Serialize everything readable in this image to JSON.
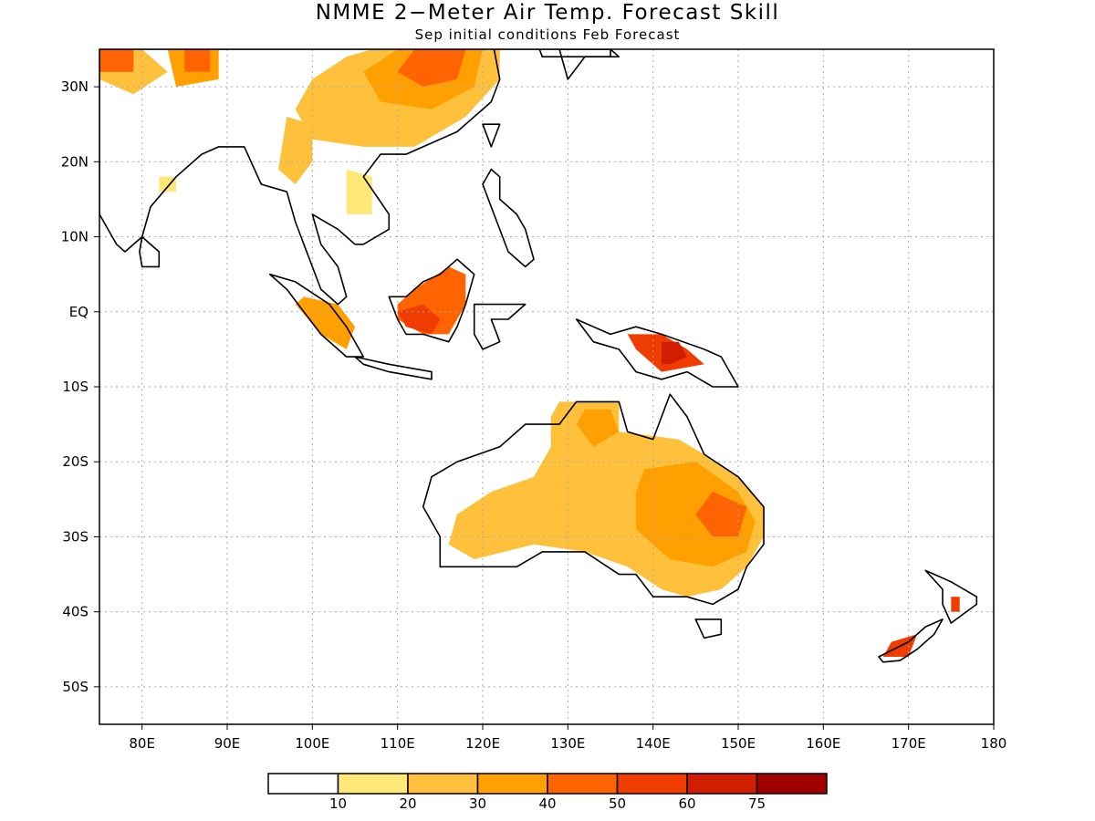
{
  "title": "NMME 2−Meter Air Temp. Forecast Skill",
  "subtitle": "Sep initial conditions  Feb Forecast",
  "map": {
    "lon_range": [
      75,
      180
    ],
    "lat_range": [
      -55,
      35
    ],
    "lat_ticks": [
      {
        "lat": 30,
        "label": "30N"
      },
      {
        "lat": 20,
        "label": "20N"
      },
      {
        "lat": 10,
        "label": "10N"
      },
      {
        "lat": 0,
        "label": "EQ"
      },
      {
        "lat": -10,
        "label": "10S"
      },
      {
        "lat": -20,
        "label": "20S"
      },
      {
        "lat": -30,
        "label": "30S"
      },
      {
        "lat": -40,
        "label": "40S"
      },
      {
        "lat": -50,
        "label": "50S"
      }
    ],
    "lon_ticks": [
      {
        "lon": 80,
        "label": "80E"
      },
      {
        "lon": 90,
        "label": "90E"
      },
      {
        "lon": 100,
        "label": "100E"
      },
      {
        "lon": 110,
        "label": "110E"
      },
      {
        "lon": 120,
        "label": "120E"
      },
      {
        "lon": 130,
        "label": "130E"
      },
      {
        "lon": 140,
        "label": "140E"
      },
      {
        "lon": 150,
        "label": "150E"
      },
      {
        "lon": 160,
        "label": "160E"
      },
      {
        "lon": 170,
        "label": "170E"
      },
      {
        "lon": 180,
        "label": "180"
      }
    ],
    "grid": "dotted"
  },
  "legend": {
    "colors": [
      "#ffffff",
      "#ffe878",
      "#ffc03c",
      "#ffa000",
      "#ff6400",
      "#f03c00",
      "#d21e00",
      "#a00000"
    ],
    "labels": [
      "10",
      "20",
      "30",
      "40",
      "50",
      "60",
      "75"
    ]
  },
  "skill_regions": [
    {
      "level": 2,
      "pts": [
        [
          107,
          35
        ],
        [
          122,
          35
        ],
        [
          122,
          31
        ],
        [
          118,
          26
        ],
        [
          112,
          22
        ],
        [
          106,
          22
        ],
        [
          100,
          23
        ],
        [
          98,
          27
        ],
        [
          100,
          31
        ],
        [
          104,
          34
        ]
      ]
    },
    {
      "level": 3,
      "pts": [
        [
          110,
          35
        ],
        [
          120,
          35
        ],
        [
          119,
          30
        ],
        [
          114,
          27
        ],
        [
          108,
          28
        ],
        [
          106,
          32
        ]
      ]
    },
    {
      "level": 4,
      "pts": [
        [
          112,
          35
        ],
        [
          118,
          35
        ],
        [
          117,
          31
        ],
        [
          113,
          30
        ],
        [
          110,
          32
        ]
      ]
    },
    {
      "level": 2,
      "pts": [
        [
          75,
          35
        ],
        [
          80,
          35
        ],
        [
          83,
          32
        ],
        [
          79,
          29
        ],
        [
          75,
          31
        ]
      ]
    },
    {
      "level": 4,
      "pts": [
        [
          75,
          35
        ],
        [
          79,
          35
        ],
        [
          79,
          32
        ],
        [
          75,
          32
        ]
      ]
    },
    {
      "level": 3,
      "pts": [
        [
          83,
          35
        ],
        [
          89,
          35
        ],
        [
          89,
          31
        ],
        [
          84,
          30
        ]
      ]
    },
    {
      "level": 4,
      "pts": [
        [
          85,
          35
        ],
        [
          88,
          35
        ],
        [
          88,
          32
        ],
        [
          85,
          32
        ]
      ]
    },
    {
      "level": 2,
      "pts": [
        [
          97,
          26
        ],
        [
          100,
          25
        ],
        [
          100,
          20
        ],
        [
          98,
          17
        ],
        [
          96,
          19
        ]
      ]
    },
    {
      "level": 1,
      "pts": [
        [
          104,
          19
        ],
        [
          107,
          18
        ],
        [
          107,
          13
        ],
        [
          104,
          13
        ]
      ]
    },
    {
      "level": 1,
      "pts": [
        [
          82,
          18
        ],
        [
          84,
          18
        ],
        [
          84,
          16
        ],
        [
          82,
          16
        ]
      ]
    },
    {
      "level": 3,
      "pts": [
        [
          99,
          2
        ],
        [
          103,
          1
        ],
        [
          105,
          -2
        ],
        [
          104,
          -5
        ],
        [
          101,
          -3
        ],
        [
          98,
          1
        ]
      ]
    },
    {
      "level": 4,
      "pts": [
        [
          110,
          1
        ],
        [
          112,
          3
        ],
        [
          116,
          6
        ],
        [
          118,
          5
        ],
        [
          118,
          1
        ],
        [
          116,
          -3
        ],
        [
          113,
          -3
        ],
        [
          110,
          -1
        ]
      ]
    },
    {
      "level": 5,
      "pts": [
        [
          110,
          0
        ],
        [
          113,
          1
        ],
        [
          115,
          -1
        ],
        [
          114,
          -3
        ],
        [
          111,
          -2
        ]
      ]
    },
    {
      "level": 5,
      "pts": [
        [
          137,
          -3
        ],
        [
          141,
          -3
        ],
        [
          144,
          -5
        ],
        [
          146,
          -7
        ],
        [
          141,
          -8
        ],
        [
          138,
          -5
        ]
      ]
    },
    {
      "level": 6,
      "pts": [
        [
          141,
          -4
        ],
        [
          143,
          -4
        ],
        [
          144,
          -6
        ],
        [
          142,
          -7
        ],
        [
          141,
          -7
        ]
      ]
    },
    {
      "level": 2,
      "pts": [
        [
          129,
          -12
        ],
        [
          136,
          -12
        ],
        [
          136,
          -16
        ],
        [
          143,
          -17
        ],
        [
          146,
          -19
        ],
        [
          150,
          -22
        ],
        [
          153,
          -26
        ],
        [
          153,
          -30
        ],
        [
          151,
          -34
        ],
        [
          148,
          -37
        ],
        [
          144,
          -38
        ],
        [
          141,
          -37
        ],
        [
          137,
          -34
        ],
        [
          132,
          -32
        ],
        [
          126,
          -31
        ],
        [
          119,
          -33
        ],
        [
          116,
          -31
        ],
        [
          117,
          -27
        ],
        [
          121,
          -24
        ],
        [
          126,
          -22
        ],
        [
          128,
          -18
        ],
        [
          128,
          -14
        ]
      ]
    },
    {
      "level": 3,
      "pts": [
        [
          139,
          -21
        ],
        [
          145,
          -20
        ],
        [
          150,
          -24
        ],
        [
          152,
          -28
        ],
        [
          151,
          -32
        ],
        [
          147,
          -34
        ],
        [
          142,
          -33
        ],
        [
          138,
          -29
        ],
        [
          138,
          -24
        ]
      ]
    },
    {
      "level": 4,
      "pts": [
        [
          147,
          -24
        ],
        [
          151,
          -26
        ],
        [
          150,
          -30
        ],
        [
          147,
          -30
        ],
        [
          145,
          -27
        ]
      ]
    },
    {
      "level": 3,
      "pts": [
        [
          132,
          -13
        ],
        [
          135,
          -13
        ],
        [
          136,
          -16
        ],
        [
          133,
          -18
        ],
        [
          131,
          -15
        ]
      ]
    },
    {
      "level": 5,
      "pts": [
        [
          168,
          -44
        ],
        [
          171,
          -43
        ],
        [
          170,
          -46
        ],
        [
          167,
          -46
        ]
      ]
    },
    {
      "level": 5,
      "pts": [
        [
          175,
          -38
        ],
        [
          176,
          -38
        ],
        [
          176,
          -40
        ],
        [
          175,
          -40
        ]
      ]
    }
  ],
  "land": [
    {
      "pts": [
        [
          75,
          35
        ],
        [
          135,
          35
        ],
        [
          135,
          34
        ],
        [
          127,
          34
        ],
        [
          126,
          37
        ],
        [
          121,
          37
        ],
        [
          122,
          31
        ],
        [
          121,
          28
        ],
        [
          117,
          24
        ],
        [
          111,
          21
        ],
        [
          108,
          21
        ],
        [
          106,
          18
        ],
        [
          109,
          13
        ],
        [
          109,
          11
        ],
        [
          106,
          9
        ],
        [
          105,
          9
        ],
        [
          103,
          11
        ],
        [
          100,
          13
        ],
        [
          101,
          9
        ],
        [
          103,
          6
        ],
        [
          104,
          2
        ],
        [
          103,
          1
        ],
        [
          101,
          3
        ],
        [
          99,
          9
        ],
        [
          98,
          12
        ],
        [
          97,
          16
        ],
        [
          94,
          17
        ],
        [
          92,
          22
        ],
        [
          89,
          22
        ],
        [
          87,
          21
        ],
        [
          84,
          18
        ],
        [
          81,
          14
        ],
        [
          80,
          10
        ],
        [
          78,
          8
        ],
        [
          77,
          9
        ],
        [
          75,
          13
        ]
      ]
    },
    {
      "pts": [
        [
          80,
          10
        ],
        [
          82,
          8
        ],
        [
          82,
          6
        ],
        [
          80,
          6
        ],
        [
          79.7,
          8
        ]
      ]
    },
    {
      "pts": [
        [
          95,
          5
        ],
        [
          98,
          4
        ],
        [
          102,
          1
        ],
        [
          104,
          -2
        ],
        [
          106,
          -6
        ],
        [
          104,
          -6
        ],
        [
          101,
          -3
        ],
        [
          99,
          0
        ],
        [
          97,
          3
        ]
      ]
    },
    {
      "pts": [
        [
          105,
          -6
        ],
        [
          109,
          -7
        ],
        [
          114,
          -8
        ],
        [
          114,
          -9
        ],
        [
          109,
          -8
        ],
        [
          106,
          -7
        ]
      ]
    },
    {
      "pts": [
        [
          109,
          2
        ],
        [
          111,
          2
        ],
        [
          113,
          4
        ],
        [
          115,
          5
        ],
        [
          117,
          7
        ],
        [
          119,
          5
        ],
        [
          118,
          1
        ],
        [
          117,
          -2
        ],
        [
          116,
          -4
        ],
        [
          113,
          -3
        ],
        [
          111,
          -3
        ],
        [
          110,
          -1
        ]
      ]
    },
    {
      "pts": [
        [
          119,
          1
        ],
        [
          121,
          1
        ],
        [
          125,
          1
        ],
        [
          123,
          -1
        ],
        [
          121,
          -1
        ],
        [
          122,
          -4
        ],
        [
          120,
          -5
        ],
        [
          119,
          -3
        ]
      ]
    },
    {
      "pts": [
        [
          121,
          19
        ],
        [
          122,
          18
        ],
        [
          122,
          15
        ],
        [
          124,
          13
        ],
        [
          125,
          11
        ],
        [
          126,
          7
        ],
        [
          125,
          6
        ],
        [
          123,
          8
        ],
        [
          121,
          14
        ],
        [
          120,
          17
        ]
      ]
    },
    {
      "pts": [
        [
          131,
          -1
        ],
        [
          135,
          -3
        ],
        [
          138,
          -2
        ],
        [
          141,
          -3
        ],
        [
          146,
          -5
        ],
        [
          148,
          -6
        ],
        [
          150,
          -10
        ],
        [
          147,
          -10
        ],
        [
          144,
          -8
        ],
        [
          141,
          -9
        ],
        [
          138,
          -8
        ],
        [
          136,
          -5
        ],
        [
          133,
          -4
        ]
      ]
    },
    {
      "pts": [
        [
          129,
          -15
        ],
        [
          131,
          -12
        ],
        [
          136,
          -12
        ],
        [
          137,
          -16
        ],
        [
          140,
          -17
        ],
        [
          142,
          -11
        ],
        [
          144,
          -14
        ],
        [
          146,
          -19
        ],
        [
          150,
          -22
        ],
        [
          153,
          -26
        ],
        [
          153,
          -31
        ],
        [
          151,
          -34
        ],
        [
          150,
          -37
        ],
        [
          147,
          -39
        ],
        [
          144,
          -38
        ],
        [
          140,
          -38
        ],
        [
          138,
          -35
        ],
        [
          136,
          -35
        ],
        [
          132,
          -32
        ],
        [
          127,
          -32
        ],
        [
          124,
          -34
        ],
        [
          119,
          -34
        ],
        [
          115,
          -34
        ],
        [
          115,
          -30
        ],
        [
          113,
          -26
        ],
        [
          114,
          -22
        ],
        [
          117,
          -20
        ],
        [
          122,
          -18
        ],
        [
          125,
          -15
        ]
      ]
    },
    {
      "pts": [
        [
          145,
          -41
        ],
        [
          148,
          -41
        ],
        [
          148,
          -43
        ],
        [
          146,
          -43.5
        ]
      ]
    },
    {
      "pts": [
        [
          172,
          -34.5
        ],
        [
          175,
          -36
        ],
        [
          178,
          -38
        ],
        [
          178,
          -39
        ],
        [
          175,
          -41.5
        ],
        [
          174,
          -39
        ],
        [
          174,
          -37
        ]
      ]
    },
    {
      "pts": [
        [
          166.5,
          -46
        ],
        [
          170,
          -44
        ],
        [
          172,
          -42
        ],
        [
          174,
          -41
        ],
        [
          173,
          -43
        ],
        [
          171,
          -45
        ],
        [
          169,
          -46.5
        ],
        [
          167,
          -46.7
        ]
      ]
    },
    {
      "pts": [
        [
          130,
          31
        ],
        [
          132,
          34
        ],
        [
          136,
          34
        ],
        [
          135,
          35
        ],
        [
          129,
          35
        ]
      ]
    },
    {
      "pts": [
        [
          120,
          25
        ],
        [
          122,
          25
        ],
        [
          121,
          22
        ]
      ]
    }
  ]
}
